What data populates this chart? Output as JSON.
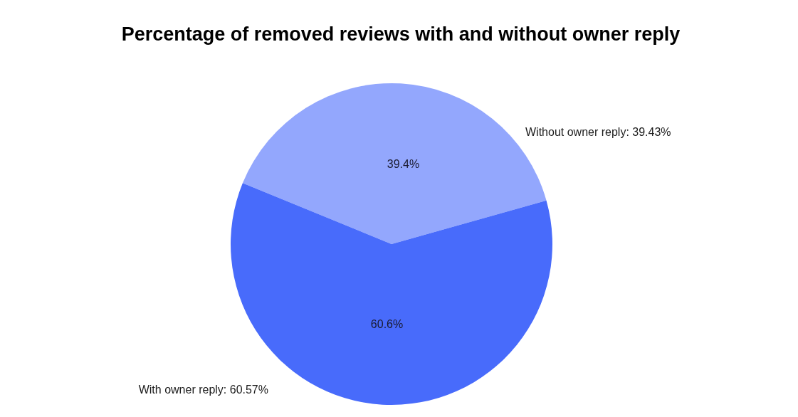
{
  "chart_data": {
    "type": "pie",
    "title": "Percentage of removed reviews with and without owner reply",
    "categories": [
      "Without owner reply: 39.43%",
      "With owner reply: 60.57%"
    ],
    "values": [
      39.43,
      60.57
    ],
    "colors": [
      "#93a7fd",
      "#486bfb"
    ],
    "value_labels": [
      "39.4%",
      "60.6%"
    ]
  }
}
